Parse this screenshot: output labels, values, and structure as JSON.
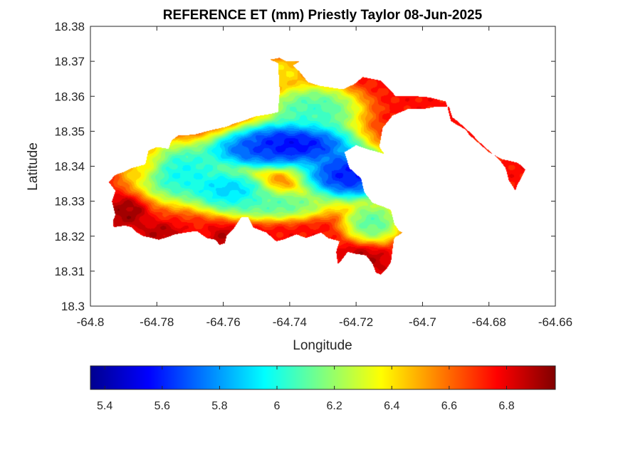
{
  "chart_data": {
    "type": "heatmap",
    "title": "REFERENCE ET (mm) Priestly Taylor 08-Jun-2025",
    "xlabel": "Longitude",
    "ylabel": "Latitude",
    "xlim": [
      -64.8,
      -64.66
    ],
    "ylim": [
      18.3,
      18.38
    ],
    "xticks": [
      "-64.8",
      "-64.78",
      "-64.76",
      "-64.74",
      "-64.72",
      "-64.7",
      "-64.68",
      "-64.66"
    ],
    "yticks": [
      "18.3",
      "18.31",
      "18.32",
      "18.33",
      "18.34",
      "18.35",
      "18.36",
      "18.37",
      "18.38"
    ],
    "colormap": "jet",
    "colorbar": {
      "range": [
        5.35,
        6.97
      ],
      "ticks": [
        "5.4",
        "5.6",
        "5.8",
        "6",
        "6.2",
        "6.4",
        "6.6",
        "6.8"
      ]
    },
    "grid": false,
    "field_approx": {
      "baseline": 6.75,
      "features": [
        {
          "lon": -64.739,
          "lat": 18.3465,
          "value": 5.36,
          "rx": 0.013,
          "ry": 0.0045
        },
        {
          "lon": -64.722,
          "lat": 18.3375,
          "value": 5.4,
          "rx": 0.01,
          "ry": 0.005
        },
        {
          "lon": -64.751,
          "lat": 18.3445,
          "value": 5.6,
          "rx": 0.01,
          "ry": 0.0035
        },
        {
          "lon": -64.758,
          "lat": 18.333,
          "value": 5.75,
          "rx": 0.008,
          "ry": 0.004
        },
        {
          "lon": -64.772,
          "lat": 18.338,
          "value": 5.85,
          "rx": 0.01,
          "ry": 0.006
        },
        {
          "lon": -64.733,
          "lat": 18.356,
          "value": 5.95,
          "rx": 0.01,
          "ry": 0.005
        },
        {
          "lon": -64.745,
          "lat": 18.329,
          "value": 6.0,
          "rx": 0.012,
          "ry": 0.003
        },
        {
          "lon": -64.715,
          "lat": 18.324,
          "value": 6.0,
          "rx": 0.006,
          "ry": 0.004
        },
        {
          "lon": -64.742,
          "lat": 18.367,
          "value": 6.35,
          "rx": 0.005,
          "ry": 0.003
        },
        {
          "lon": -64.785,
          "lat": 18.341,
          "value": 6.45,
          "rx": 0.005,
          "ry": 0.004
        },
        {
          "lon": -64.789,
          "lat": 18.327,
          "value": 6.95,
          "rx": 0.004,
          "ry": 0.003
        },
        {
          "lon": -64.718,
          "lat": 18.313,
          "value": 6.9,
          "rx": 0.005,
          "ry": 0.003
        },
        {
          "lon": -64.76,
          "lat": 18.319,
          "value": 6.9,
          "rx": 0.003,
          "ry": 0.0025
        },
        {
          "lon": -64.779,
          "lat": 18.321,
          "value": 6.9,
          "rx": 0.004,
          "ry": 0.002
        }
      ]
    }
  }
}
